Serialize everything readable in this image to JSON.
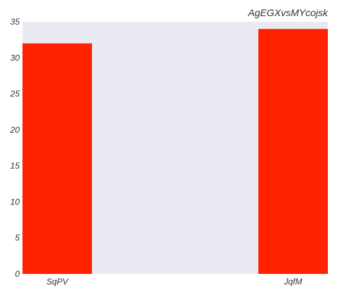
{
  "chart_data": {
    "type": "bar",
    "title": "AgEGXvsMYcojsk",
    "xlabel": "",
    "ylabel": "",
    "categories": [
      "SqPV",
      "JqfM"
    ],
    "values": [
      32,
      34
    ],
    "ylim": [
      0,
      35
    ],
    "yticks": [
      0,
      5,
      10,
      15,
      20,
      25,
      30,
      35
    ],
    "grid": false,
    "bar_color": "#ff2200",
    "plot_background": "#eaeaf2"
  }
}
